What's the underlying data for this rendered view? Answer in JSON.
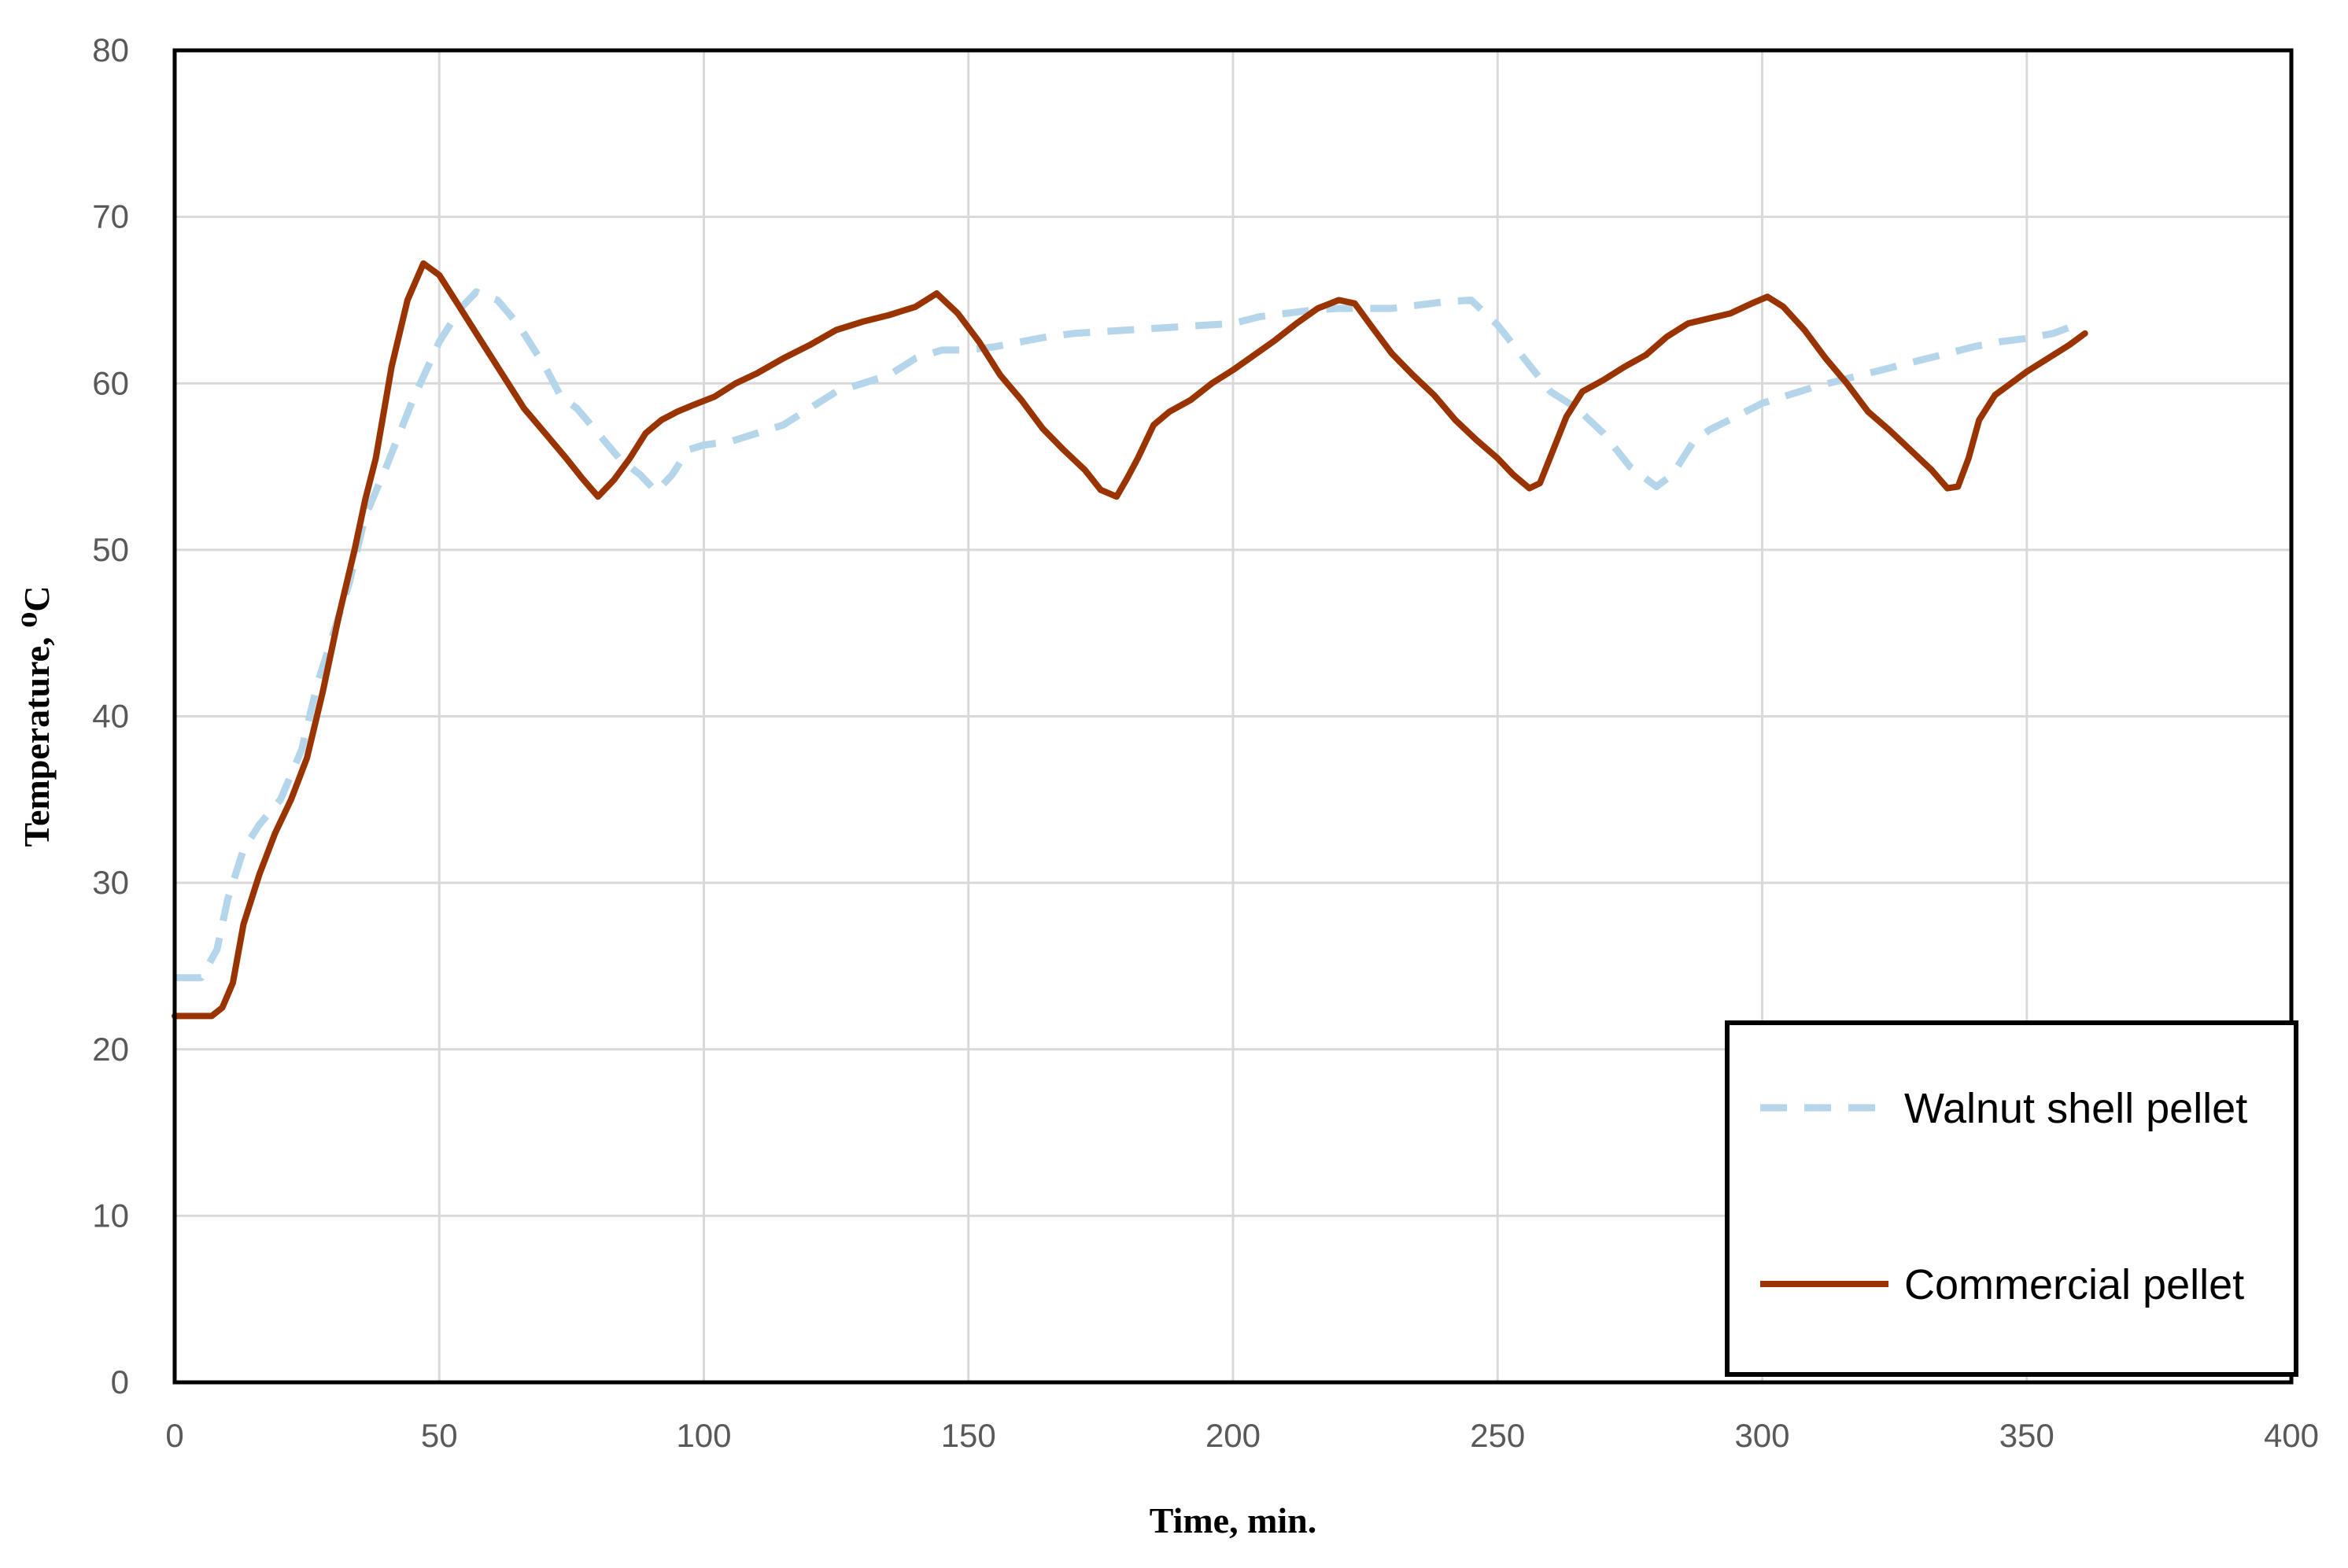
{
  "chart_data": {
    "type": "line",
    "title": "",
    "xlabel": "Time, min.",
    "ylabel": "Temperature, ⁰C",
    "xlim": [
      0,
      400
    ],
    "ylim": [
      0,
      80
    ],
    "x_ticks": [
      0,
      50,
      100,
      150,
      200,
      250,
      300,
      350,
      400
    ],
    "y_ticks": [
      0,
      10,
      20,
      30,
      40,
      50,
      60,
      70,
      80
    ],
    "grid": true,
    "legend_position": "bottom-right",
    "series": [
      {
        "name": "Walnut shell pellet",
        "color": "#b4d5ea",
        "line_style": "dashed",
        "points": [
          [
            0,
            24.3
          ],
          [
            5,
            24.3
          ],
          [
            8,
            26
          ],
          [
            10,
            29
          ],
          [
            13,
            32
          ],
          [
            16,
            33.5
          ],
          [
            20,
            35
          ],
          [
            24,
            38
          ],
          [
            27,
            42
          ],
          [
            30,
            45
          ],
          [
            33,
            48
          ],
          [
            36,
            52
          ],
          [
            40,
            55
          ],
          [
            45,
            59
          ],
          [
            50,
            62.5
          ],
          [
            54,
            64.5
          ],
          [
            57,
            65.5
          ],
          [
            61,
            65
          ],
          [
            65,
            63.5
          ],
          [
            70,
            61
          ],
          [
            73,
            59.2
          ],
          [
            76,
            58.5
          ],
          [
            80,
            57
          ],
          [
            84,
            55.5
          ],
          [
            88,
            54.5
          ],
          [
            91,
            53.5
          ],
          [
            94,
            54.5
          ],
          [
            97,
            56
          ],
          [
            100,
            56.3
          ],
          [
            105,
            56.5
          ],
          [
            110,
            57
          ],
          [
            115,
            57.5
          ],
          [
            120,
            58.5
          ],
          [
            125,
            59.5
          ],
          [
            130,
            60
          ],
          [
            135,
            60.5
          ],
          [
            140,
            61.5
          ],
          [
            145,
            62
          ],
          [
            150,
            62
          ],
          [
            155,
            62.2
          ],
          [
            160,
            62.5
          ],
          [
            165,
            62.8
          ],
          [
            170,
            63
          ],
          [
            180,
            63.2
          ],
          [
            190,
            63.4
          ],
          [
            200,
            63.6
          ],
          [
            205,
            64
          ],
          [
            210,
            64.2
          ],
          [
            215,
            64.4
          ],
          [
            220,
            64.5
          ],
          [
            230,
            64.5
          ],
          [
            240,
            64.9
          ],
          [
            245,
            65
          ],
          [
            250,
            63.5
          ],
          [
            255,
            61.5
          ],
          [
            260,
            59.5
          ],
          [
            265,
            58.5
          ],
          [
            270,
            57
          ],
          [
            275,
            55
          ],
          [
            280,
            53.8
          ],
          [
            283,
            54.5
          ],
          [
            287,
            56.5
          ],
          [
            290,
            57.2
          ],
          [
            295,
            58
          ],
          [
            300,
            58.8
          ],
          [
            305,
            59.3
          ],
          [
            310,
            59.8
          ],
          [
            315,
            60.2
          ],
          [
            320,
            60.6
          ],
          [
            325,
            61
          ],
          [
            330,
            61.4
          ],
          [
            335,
            61.8
          ],
          [
            340,
            62.2
          ],
          [
            345,
            62.5
          ],
          [
            350,
            62.7
          ],
          [
            355,
            63
          ],
          [
            360,
            63.6
          ]
        ]
      },
      {
        "name": "Commercial pellet",
        "color": "#993300",
        "line_style": "solid",
        "points": [
          [
            0,
            22
          ],
          [
            4,
            22
          ],
          [
            7,
            22
          ],
          [
            9,
            22.5
          ],
          [
            11,
            24
          ],
          [
            13,
            27.5
          ],
          [
            16,
            30.5
          ],
          [
            19,
            33
          ],
          [
            22,
            35
          ],
          [
            25,
            37.5
          ],
          [
            28,
            41.5
          ],
          [
            31,
            46
          ],
          [
            34,
            50
          ],
          [
            36,
            53
          ],
          [
            38,
            55.5
          ],
          [
            41,
            61
          ],
          [
            44,
            65
          ],
          [
            47,
            67.2
          ],
          [
            50,
            66.5
          ],
          [
            54,
            64.5
          ],
          [
            58,
            62.5
          ],
          [
            62,
            60.5
          ],
          [
            66,
            58.5
          ],
          [
            70,
            57
          ],
          [
            74,
            55.5
          ],
          [
            77,
            54.3
          ],
          [
            80,
            53.2
          ],
          [
            83,
            54.2
          ],
          [
            86,
            55.5
          ],
          [
            89,
            57
          ],
          [
            92,
            57.8
          ],
          [
            95,
            58.3
          ],
          [
            98,
            58.7
          ],
          [
            102,
            59.2
          ],
          [
            106,
            60
          ],
          [
            110,
            60.6
          ],
          [
            115,
            61.5
          ],
          [
            120,
            62.3
          ],
          [
            125,
            63.2
          ],
          [
            130,
            63.7
          ],
          [
            135,
            64.1
          ],
          [
            140,
            64.6
          ],
          [
            144,
            65.4
          ],
          [
            148,
            64.2
          ],
          [
            152,
            62.5
          ],
          [
            156,
            60.5
          ],
          [
            160,
            59
          ],
          [
            164,
            57.3
          ],
          [
            168,
            56
          ],
          [
            172,
            54.8
          ],
          [
            175,
            53.6
          ],
          [
            178,
            53.2
          ],
          [
            180,
            54.3
          ],
          [
            182,
            55.5
          ],
          [
            185,
            57.5
          ],
          [
            188,
            58.3
          ],
          [
            192,
            59
          ],
          [
            196,
            60
          ],
          [
            200,
            60.8
          ],
          [
            204,
            61.7
          ],
          [
            208,
            62.6
          ],
          [
            212,
            63.6
          ],
          [
            216,
            64.5
          ],
          [
            220,
            65
          ],
          [
            223,
            64.8
          ],
          [
            226,
            63.5
          ],
          [
            230,
            61.8
          ],
          [
            234,
            60.5
          ],
          [
            238,
            59.3
          ],
          [
            242,
            57.8
          ],
          [
            246,
            56.6
          ],
          [
            250,
            55.5
          ],
          [
            253,
            54.5
          ],
          [
            256,
            53.7
          ],
          [
            258,
            54
          ],
          [
            260,
            55.6
          ],
          [
            263,
            58
          ],
          [
            266,
            59.5
          ],
          [
            270,
            60.2
          ],
          [
            274,
            61
          ],
          [
            278,
            61.7
          ],
          [
            282,
            62.8
          ],
          [
            286,
            63.6
          ],
          [
            290,
            63.9
          ],
          [
            294,
            64.2
          ],
          [
            298,
            64.8
          ],
          [
            301,
            65.2
          ],
          [
            304,
            64.6
          ],
          [
            308,
            63.2
          ],
          [
            312,
            61.5
          ],
          [
            316,
            60
          ],
          [
            320,
            58.3
          ],
          [
            324,
            57.2
          ],
          [
            328,
            56
          ],
          [
            332,
            54.8
          ],
          [
            335,
            53.7
          ],
          [
            337,
            53.8
          ],
          [
            339,
            55.5
          ],
          [
            341,
            57.8
          ],
          [
            344,
            59.3
          ],
          [
            347,
            60
          ],
          [
            350,
            60.7
          ],
          [
            354,
            61.5
          ],
          [
            358,
            62.3
          ],
          [
            361,
            63
          ]
        ]
      }
    ]
  }
}
